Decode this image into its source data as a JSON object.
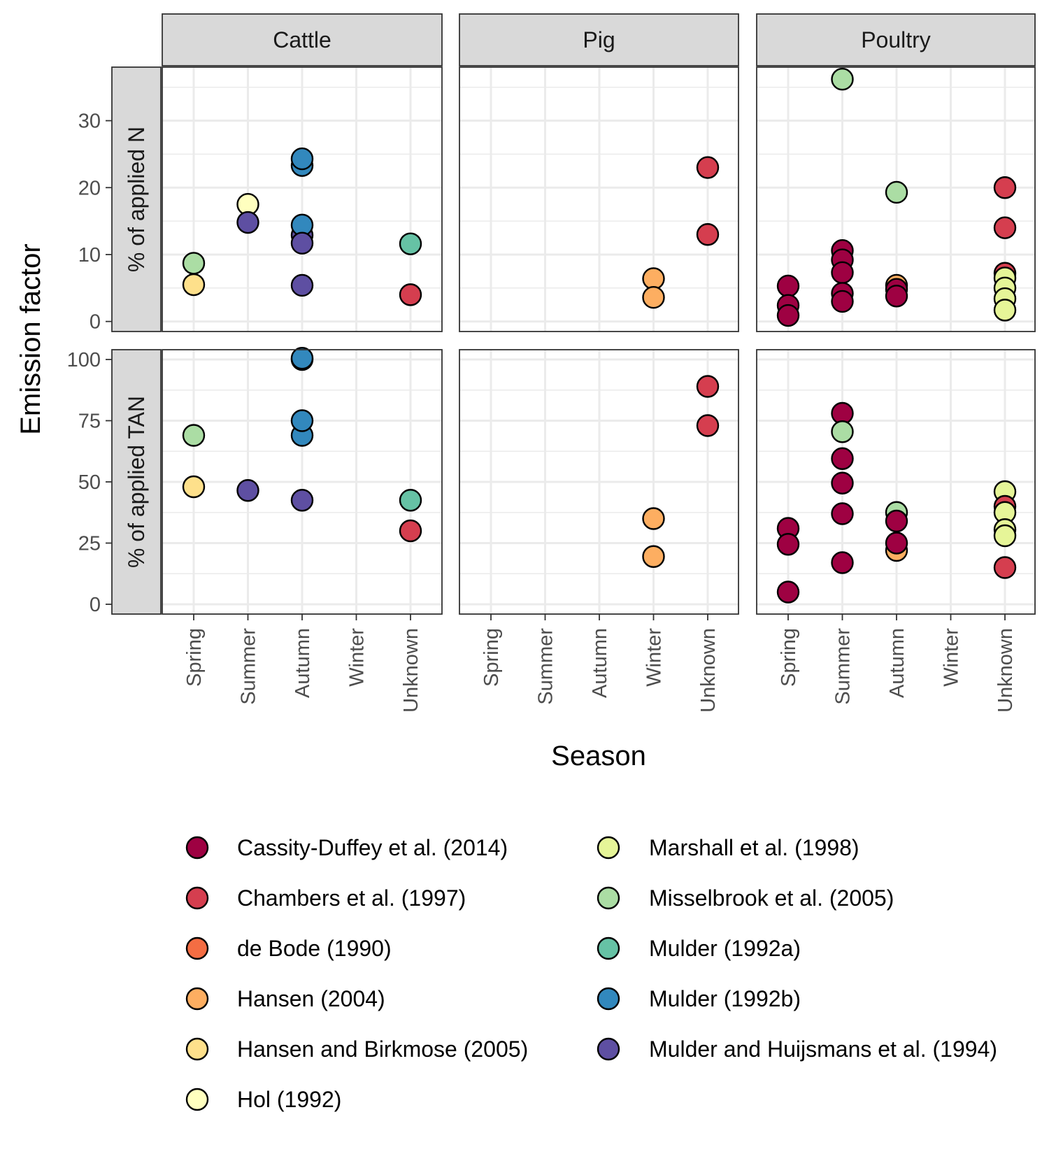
{
  "chart_data": {
    "type": "scatter",
    "xlabel": "Season",
    "ylabel": "Emission factor",
    "x_categories": [
      "Spring",
      "Summer",
      "Autumn",
      "Winter",
      "Unknown"
    ],
    "columns": [
      "Cattle",
      "Pig",
      "Poultry"
    ],
    "rows": [
      {
        "label": "% of applied N",
        "ylim": [
          -1.5,
          38
        ],
        "ticks": [
          0,
          10,
          20,
          30
        ]
      },
      {
        "label": "% of applied TAN",
        "ylim": [
          -4,
          104
        ],
        "ticks": [
          0,
          25,
          50,
          75,
          100
        ]
      }
    ],
    "grid": true,
    "legend_position": "bottom",
    "series": [
      {
        "name": "Cassity-Duffey et al. (2014)",
        "color": "#9E0142"
      },
      {
        "name": "Chambers et al. (1997)",
        "color": "#D53E4F"
      },
      {
        "name": "de Bode (1990)",
        "color": "#F46D43"
      },
      {
        "name": "Hansen (2004)",
        "color": "#FDAE61"
      },
      {
        "name": "Hansen and Birkmose (2005)",
        "color": "#FEE08B"
      },
      {
        "name": "Hol (1992)",
        "color": "#FFFFBF"
      },
      {
        "name": "Marshall et al. (1998)",
        "color": "#E6F598"
      },
      {
        "name": "Misselbrook et al. (2005)",
        "color": "#ABDDA4"
      },
      {
        "name": "Mulder (1992a)",
        "color": "#66C2A5"
      },
      {
        "name": "Mulder (1992b)",
        "color": "#3288BD"
      },
      {
        "name": "Mulder and Huijsmans et al. (1994)",
        "color": "#5E4FA2"
      }
    ],
    "points": [
      {
        "col": "Cattle",
        "row": 0,
        "x": "Spring",
        "y": 8.7,
        "series": 7
      },
      {
        "col": "Cattle",
        "row": 0,
        "x": "Spring",
        "y": 5.5,
        "series": 4
      },
      {
        "col": "Cattle",
        "row": 0,
        "x": "Summer",
        "y": 17.5,
        "series": 5
      },
      {
        "col": "Cattle",
        "row": 0,
        "x": "Summer",
        "y": 14.8,
        "series": 10
      },
      {
        "col": "Cattle",
        "row": 0,
        "x": "Autumn",
        "y": 23.3,
        "series": 9
      },
      {
        "col": "Cattle",
        "row": 0,
        "x": "Autumn",
        "y": 24.3,
        "series": 9
      },
      {
        "col": "Cattle",
        "row": 0,
        "x": "Autumn",
        "y": 12.9,
        "series": 10
      },
      {
        "col": "Cattle",
        "row": 0,
        "x": "Autumn",
        "y": 14.4,
        "series": 9
      },
      {
        "col": "Cattle",
        "row": 0,
        "x": "Autumn",
        "y": 11.7,
        "series": 10
      },
      {
        "col": "Cattle",
        "row": 0,
        "x": "Autumn",
        "y": 5.4,
        "series": 10
      },
      {
        "col": "Cattle",
        "row": 0,
        "x": "Unknown",
        "y": 11.6,
        "series": 8
      },
      {
        "col": "Cattle",
        "row": 0,
        "x": "Unknown",
        "y": 4.0,
        "series": 1
      },
      {
        "col": "Pig",
        "row": 0,
        "x": "Winter",
        "y": 6.4,
        "series": 3
      },
      {
        "col": "Pig",
        "row": 0,
        "x": "Winter",
        "y": 3.6,
        "series": 3
      },
      {
        "col": "Pig",
        "row": 0,
        "x": "Unknown",
        "y": 23.0,
        "series": 1
      },
      {
        "col": "Pig",
        "row": 0,
        "x": "Unknown",
        "y": 13.0,
        "series": 1
      },
      {
        "col": "Poultry",
        "row": 0,
        "x": "Spring",
        "y": 5.3,
        "series": 0
      },
      {
        "col": "Poultry",
        "row": 0,
        "x": "Spring",
        "y": 2.4,
        "series": 0
      },
      {
        "col": "Poultry",
        "row": 0,
        "x": "Spring",
        "y": 0.9,
        "series": 0
      },
      {
        "col": "Poultry",
        "row": 0,
        "x": "Summer",
        "y": 36.2,
        "series": 7
      },
      {
        "col": "Poultry",
        "row": 0,
        "x": "Summer",
        "y": 10.6,
        "series": 0
      },
      {
        "col": "Poultry",
        "row": 0,
        "x": "Summer",
        "y": 9.2,
        "series": 0
      },
      {
        "col": "Poultry",
        "row": 0,
        "x": "Summer",
        "y": 7.3,
        "series": 0
      },
      {
        "col": "Poultry",
        "row": 0,
        "x": "Summer",
        "y": 4.2,
        "series": 0
      },
      {
        "col": "Poultry",
        "row": 0,
        "x": "Summer",
        "y": 3.0,
        "series": 0
      },
      {
        "col": "Poultry",
        "row": 0,
        "x": "Autumn",
        "y": 19.3,
        "series": 7
      },
      {
        "col": "Poultry",
        "row": 0,
        "x": "Autumn",
        "y": 5.4,
        "series": 3
      },
      {
        "col": "Poultry",
        "row": 0,
        "x": "Autumn",
        "y": 4.8,
        "series": 0
      },
      {
        "col": "Poultry",
        "row": 0,
        "x": "Autumn",
        "y": 3.8,
        "series": 0
      },
      {
        "col": "Poultry",
        "row": 0,
        "x": "Unknown",
        "y": 20.0,
        "series": 1
      },
      {
        "col": "Poultry",
        "row": 0,
        "x": "Unknown",
        "y": 14.0,
        "series": 1
      },
      {
        "col": "Poultry",
        "row": 0,
        "x": "Unknown",
        "y": 7.2,
        "series": 1
      },
      {
        "col": "Poultry",
        "row": 0,
        "x": "Unknown",
        "y": 6.5,
        "series": 6
      },
      {
        "col": "Poultry",
        "row": 0,
        "x": "Unknown",
        "y": 5.0,
        "series": 6
      },
      {
        "col": "Poultry",
        "row": 0,
        "x": "Unknown",
        "y": 3.4,
        "series": 6
      },
      {
        "col": "Poultry",
        "row": 0,
        "x": "Unknown",
        "y": 1.7,
        "series": 6
      },
      {
        "col": "Cattle",
        "row": 1,
        "x": "Spring",
        "y": 69,
        "series": 7
      },
      {
        "col": "Cattle",
        "row": 1,
        "x": "Spring",
        "y": 48,
        "series": 4
      },
      {
        "col": "Cattle",
        "row": 1,
        "x": "Summer",
        "y": 46.5,
        "series": 10
      },
      {
        "col": "Cattle",
        "row": 1,
        "x": "Autumn",
        "y": 100,
        "series": 9
      },
      {
        "col": "Cattle",
        "row": 1,
        "x": "Autumn",
        "y": 100.5,
        "series": 9
      },
      {
        "col": "Cattle",
        "row": 1,
        "x": "Autumn",
        "y": 69,
        "series": 9
      },
      {
        "col": "Cattle",
        "row": 1,
        "x": "Autumn",
        "y": 75,
        "series": 9
      },
      {
        "col": "Cattle",
        "row": 1,
        "x": "Autumn",
        "y": 42.5,
        "series": 10
      },
      {
        "col": "Cattle",
        "row": 1,
        "x": "Unknown",
        "y": 42.5,
        "series": 8
      },
      {
        "col": "Cattle",
        "row": 1,
        "x": "Unknown",
        "y": 30,
        "series": 1
      },
      {
        "col": "Pig",
        "row": 1,
        "x": "Winter",
        "y": 35,
        "series": 3
      },
      {
        "col": "Pig",
        "row": 1,
        "x": "Winter",
        "y": 19.5,
        "series": 3
      },
      {
        "col": "Pig",
        "row": 1,
        "x": "Unknown",
        "y": 89,
        "series": 1
      },
      {
        "col": "Pig",
        "row": 1,
        "x": "Unknown",
        "y": 73,
        "series": 1
      },
      {
        "col": "Poultry",
        "row": 1,
        "x": "Spring",
        "y": 31,
        "series": 0
      },
      {
        "col": "Poultry",
        "row": 1,
        "x": "Spring",
        "y": 24.5,
        "series": 0
      },
      {
        "col": "Poultry",
        "row": 1,
        "x": "Spring",
        "y": 5,
        "series": 0
      },
      {
        "col": "Poultry",
        "row": 1,
        "x": "Summer",
        "y": 78,
        "series": 0
      },
      {
        "col": "Poultry",
        "row": 1,
        "x": "Summer",
        "y": 70.5,
        "series": 7
      },
      {
        "col": "Poultry",
        "row": 1,
        "x": "Summer",
        "y": 59.5,
        "series": 0
      },
      {
        "col": "Poultry",
        "row": 1,
        "x": "Summer",
        "y": 49.5,
        "series": 0
      },
      {
        "col": "Poultry",
        "row": 1,
        "x": "Summer",
        "y": 37,
        "series": 0
      },
      {
        "col": "Poultry",
        "row": 1,
        "x": "Summer",
        "y": 17,
        "series": 0
      },
      {
        "col": "Poultry",
        "row": 1,
        "x": "Autumn",
        "y": 37.5,
        "series": 7
      },
      {
        "col": "Poultry",
        "row": 1,
        "x": "Autumn",
        "y": 34,
        "series": 0
      },
      {
        "col": "Poultry",
        "row": 1,
        "x": "Autumn",
        "y": 22,
        "series": 3
      },
      {
        "col": "Poultry",
        "row": 1,
        "x": "Autumn",
        "y": 25,
        "series": 0
      },
      {
        "col": "Poultry",
        "row": 1,
        "x": "Unknown",
        "y": 46,
        "series": 6
      },
      {
        "col": "Poultry",
        "row": 1,
        "x": "Unknown",
        "y": 40,
        "series": 1
      },
      {
        "col": "Poultry",
        "row": 1,
        "x": "Unknown",
        "y": 37.5,
        "series": 6
      },
      {
        "col": "Poultry",
        "row": 1,
        "x": "Unknown",
        "y": 30.5,
        "series": 6
      },
      {
        "col": "Poultry",
        "row": 1,
        "x": "Unknown",
        "y": 28,
        "series": 6
      },
      {
        "col": "Poultry",
        "row": 1,
        "x": "Unknown",
        "y": 15,
        "series": 1
      }
    ]
  }
}
